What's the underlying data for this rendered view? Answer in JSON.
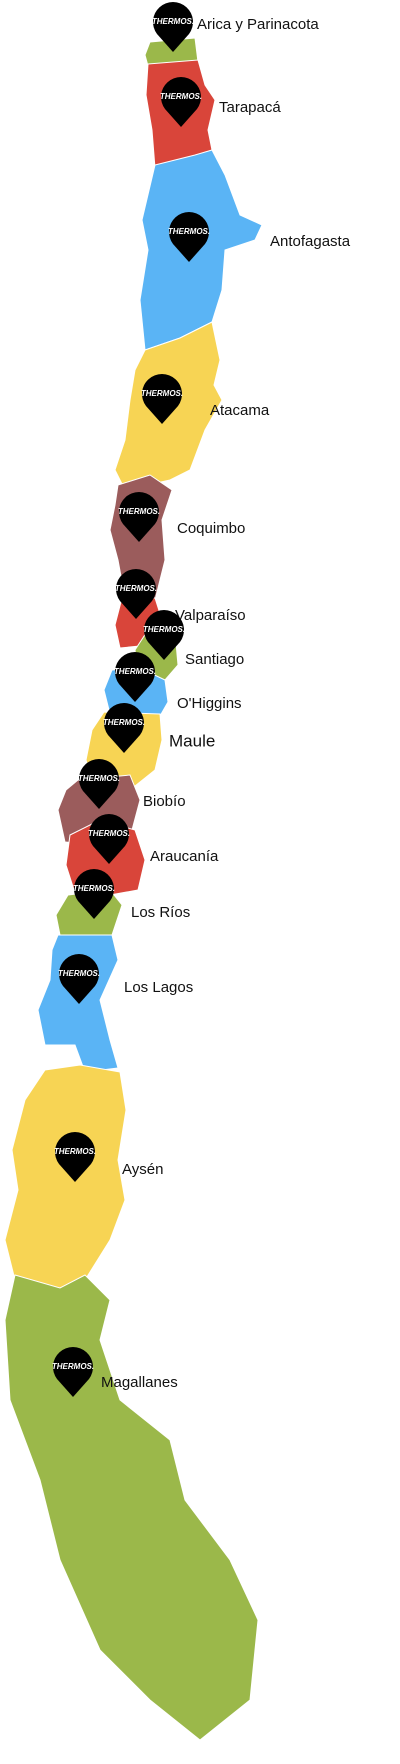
{
  "regions": [
    {
      "name": "Arica y Parinacota",
      "pin": "THERMOS."
    },
    {
      "name": "Tarapacá",
      "pin": "THERMOS."
    },
    {
      "name": "Antofagasta",
      "pin": "THERMOS."
    },
    {
      "name": "Atacama",
      "pin": "THERMOS."
    },
    {
      "name": "Coquimbo",
      "pin": "THERMOS."
    },
    {
      "name": "Valparaíso",
      "pin": "THERMOS."
    },
    {
      "name": "Santiago",
      "pin": "THERMOS."
    },
    {
      "name": "O'Higgins",
      "pin": "THERMOS."
    },
    {
      "name": "Maule",
      "pin": "THERMOS."
    },
    {
      "name": "Biobío",
      "pin": "THERMOS."
    },
    {
      "name": "Araucanía",
      "pin": "THERMOS."
    },
    {
      "name": "Los Ríos",
      "pin": "THERMOS."
    },
    {
      "name": "Los Lagos",
      "pin": "THERMOS."
    },
    {
      "name": "Aysén",
      "pin": "THERMOS."
    },
    {
      "name": "Magallanes",
      "pin": "THERMOS."
    }
  ]
}
